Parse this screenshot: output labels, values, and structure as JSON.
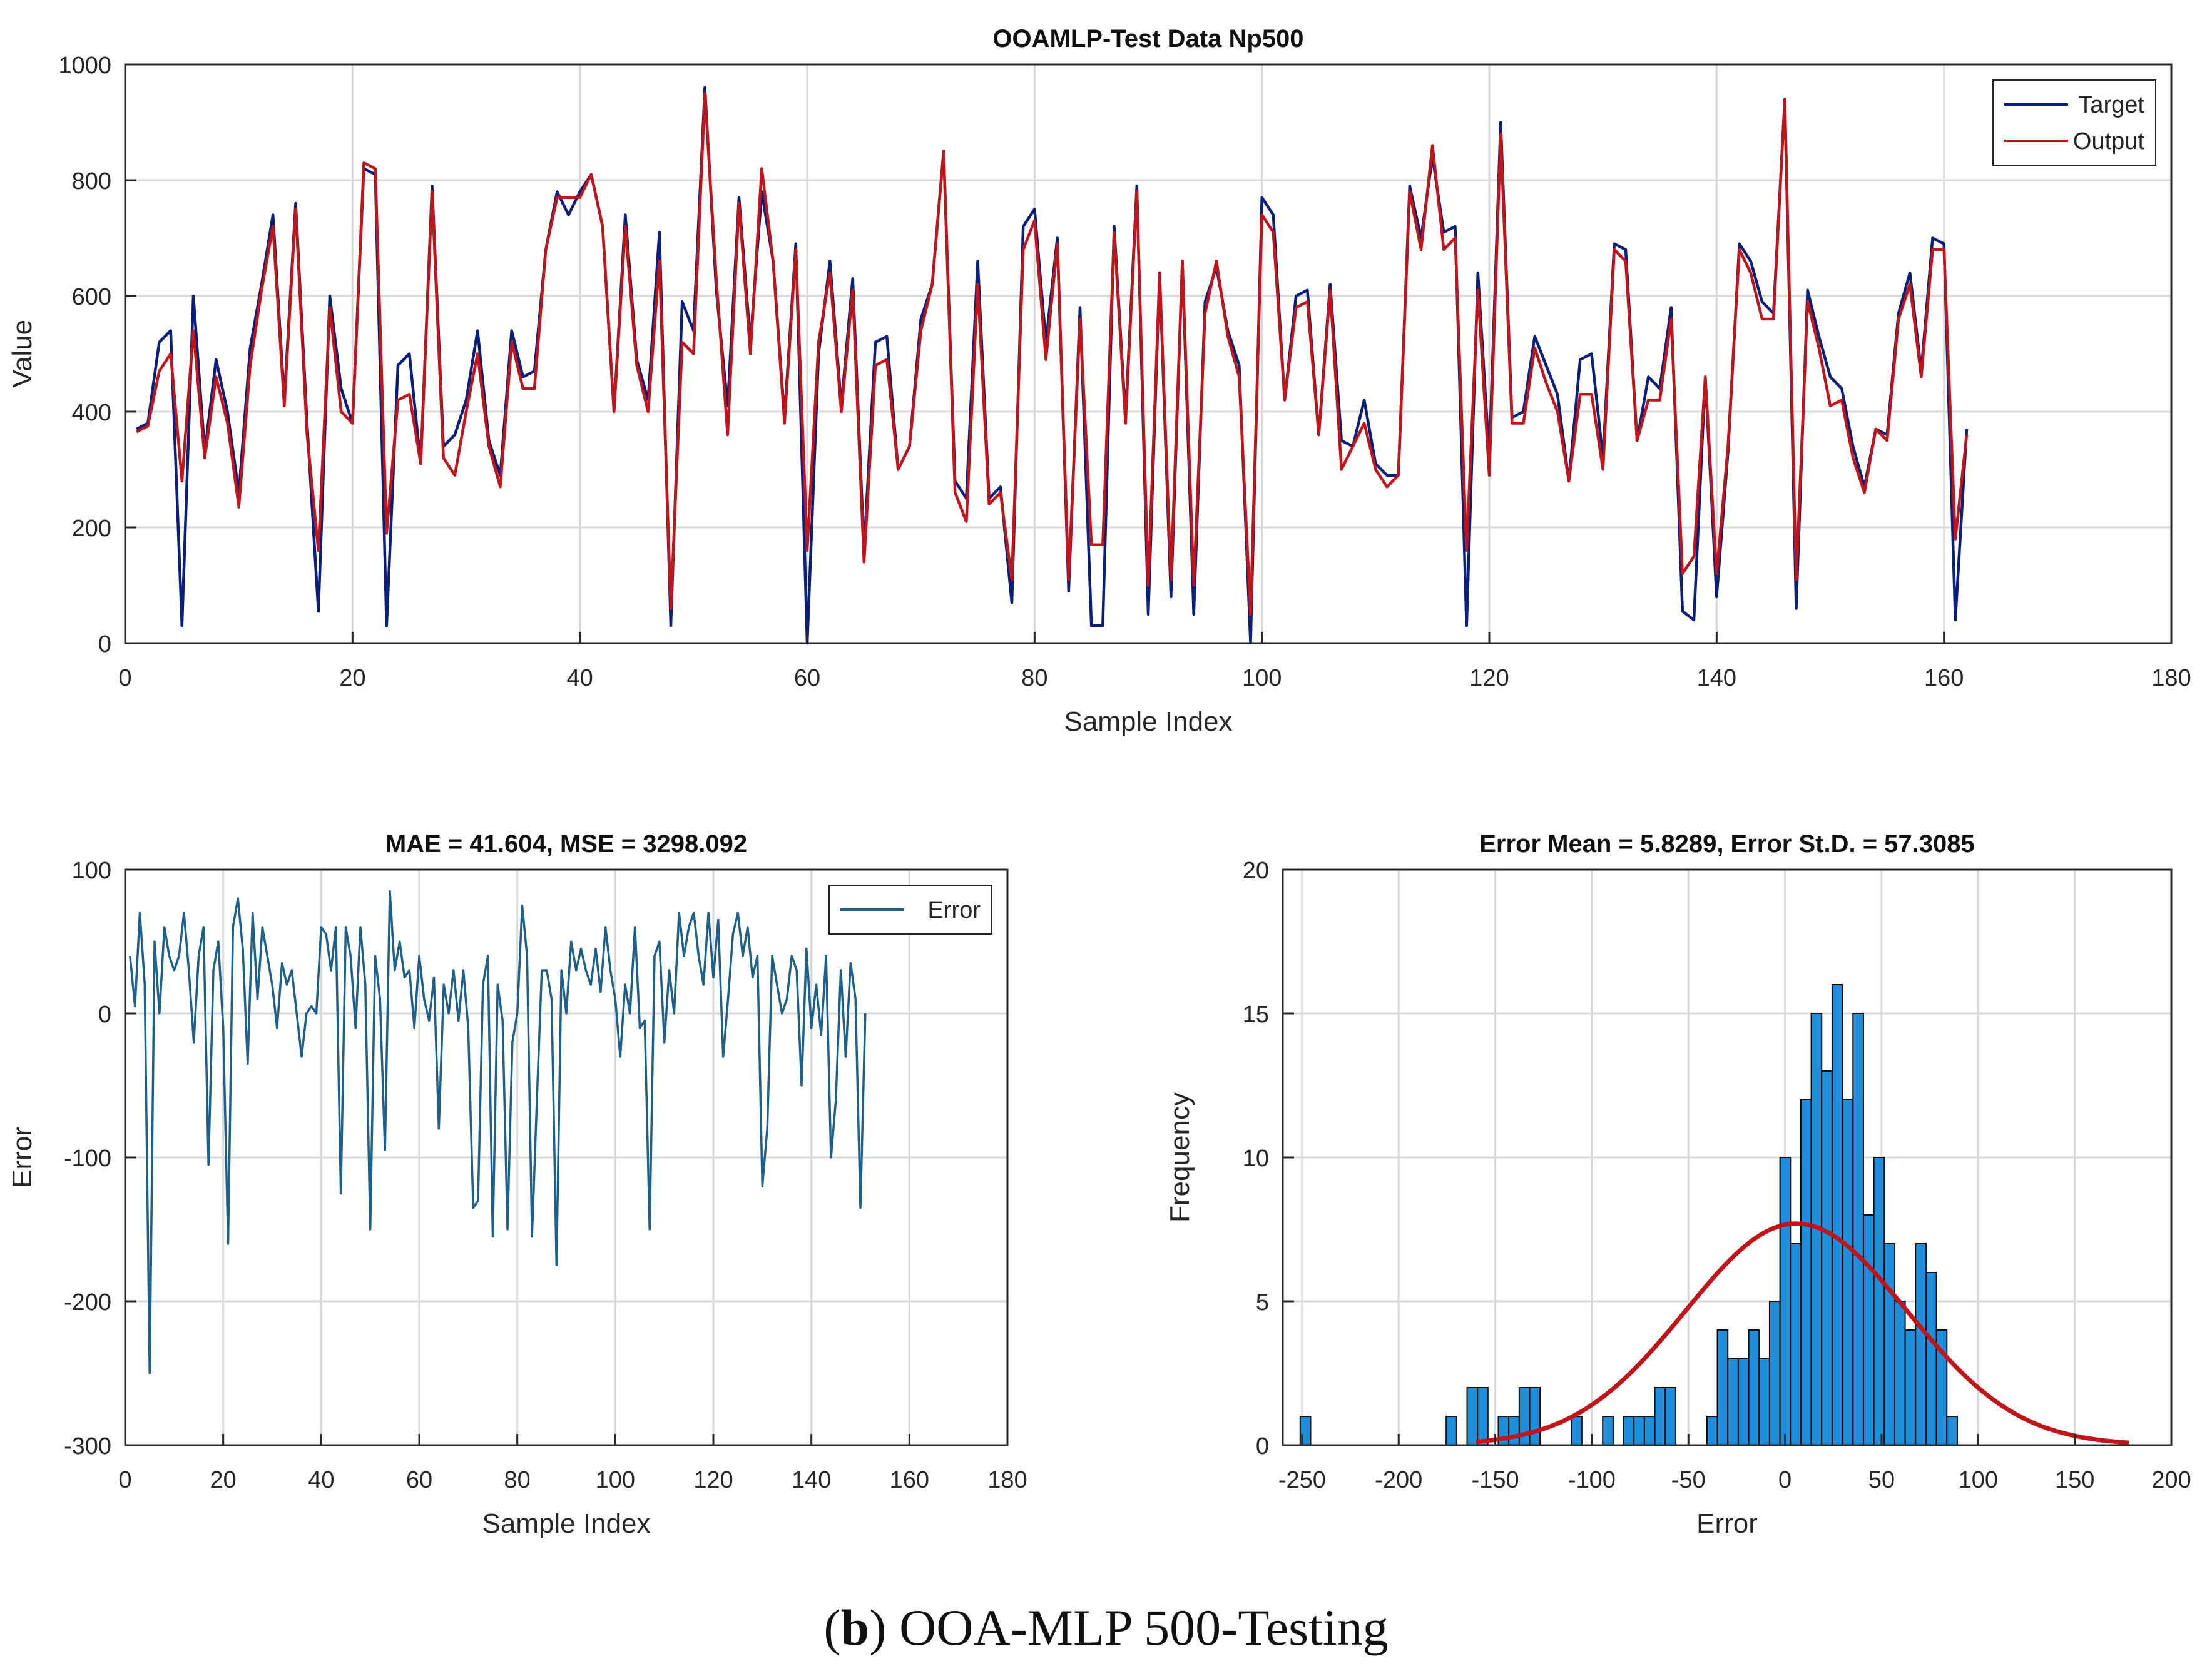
{
  "caption": {
    "label": "b",
    "text": " OOA-MLP 500-Testing"
  },
  "colors": {
    "target": "#0a1f7a",
    "output": "#c0151a",
    "error_line": "#1f5f8b",
    "hist_bar": "#1f8fdc",
    "fit_curve": "#c0151a",
    "grid": "#d9d9d9"
  },
  "chart_data": [
    {
      "type": "line",
      "title": "OOAMLP-Test Data Np500",
      "xlabel": "Sample Index",
      "ylabel": "Value",
      "xlim": [
        0,
        180
      ],
      "ylim": [
        0,
        1000
      ],
      "xticks": [
        0,
        20,
        40,
        60,
        80,
        100,
        120,
        140,
        160,
        180
      ],
      "yticks": [
        0,
        200,
        400,
        600,
        800,
        1000
      ],
      "grid": true,
      "legend": "top-right",
      "series": [
        {
          "name": "Target",
          "values": [
            370,
            380,
            520,
            540,
            30,
            600,
            330,
            490,
            400,
            260,
            510,
            620,
            740,
            420,
            760,
            380,
            55,
            600,
            440,
            380,
            820,
            810,
            30,
            480,
            500,
            310,
            790,
            340,
            360,
            420,
            540,
            350,
            290,
            540,
            460,
            470,
            680,
            780,
            740,
            780,
            810,
            720,
            400,
            740,
            490,
            420,
            710,
            30,
            590,
            540,
            960,
            610,
            410,
            770,
            520,
            780,
            660,
            390,
            690,
            0,
            500,
            660,
            410,
            630,
            160,
            520,
            530,
            300,
            340,
            560,
            620,
            850,
            280,
            250,
            660,
            250,
            270,
            70,
            720,
            750,
            520,
            700,
            90,
            580,
            30,
            30,
            720,
            390,
            790,
            50,
            640,
            80,
            660,
            50,
            590,
            650,
            540,
            480,
            0,
            770,
            740,
            420,
            600,
            610,
            360,
            620,
            350,
            340,
            420,
            310,
            290,
            290,
            790,
            700,
            840,
            710,
            720,
            30,
            640,
            320,
            900,
            390,
            400,
            530,
            480,
            430,
            280,
            490,
            500,
            320,
            690,
            680,
            350,
            460,
            440,
            580,
            55,
            40,
            460,
            80,
            330,
            690,
            660,
            590,
            570,
            940,
            60,
            610,
            530,
            460,
            440,
            340,
            270,
            370,
            360,
            570,
            640,
            470,
            700,
            690,
            40,
            370
          ]
        },
        {
          "name": "Output",
          "values": [
            365,
            375,
            470,
            500,
            280,
            540,
            320,
            460,
            380,
            235,
            480,
            610,
            720,
            410,
            750,
            360,
            160,
            580,
            400,
            380,
            830,
            820,
            190,
            420,
            430,
            310,
            780,
            320,
            290,
            400,
            500,
            340,
            270,
            520,
            440,
            440,
            680,
            770,
            770,
            770,
            810,
            720,
            400,
            720,
            480,
            400,
            660,
            60,
            520,
            500,
            950,
            630,
            360,
            760,
            500,
            820,
            660,
            380,
            680,
            160,
            520,
            640,
            400,
            610,
            140,
            480,
            490,
            300,
            340,
            540,
            620,
            850,
            260,
            210,
            620,
            240,
            260,
            110,
            680,
            730,
            490,
            690,
            110,
            560,
            170,
            170,
            710,
            380,
            780,
            100,
            640,
            110,
            660,
            100,
            570,
            660,
            530,
            460,
            50,
            740,
            710,
            420,
            580,
            590,
            360,
            610,
            300,
            340,
            380,
            300,
            270,
            290,
            780,
            680,
            860,
            680,
            700,
            160,
            610,
            290,
            880,
            380,
            380,
            510,
            450,
            400,
            280,
            430,
            430,
            300,
            680,
            660,
            350,
            420,
            420,
            560,
            120,
            150,
            460,
            120,
            340,
            680,
            640,
            560,
            560,
            940,
            110,
            590,
            510,
            410,
            420,
            320,
            260,
            370,
            350,
            560,
            620,
            460,
            680,
            680,
            180,
            360
          ]
        }
      ]
    },
    {
      "type": "line",
      "title": "MAE = 41.604, MSE = 3298.092",
      "xlabel": "Sample Index",
      "ylabel": "Error",
      "xlim": [
        0,
        180
      ],
      "ylim": [
        -300,
        100
      ],
      "xticks": [
        0,
        20,
        40,
        60,
        80,
        100,
        120,
        140,
        160,
        180
      ],
      "yticks": [
        -300,
        -200,
        -100,
        0,
        100
      ],
      "grid": true,
      "legend": "top-right",
      "series": [
        {
          "name": "Error",
          "values": [
            40,
            5,
            70,
            20,
            -250,
            50,
            0,
            60,
            40,
            30,
            40,
            70,
            30,
            -20,
            40,
            60,
            -105,
            30,
            50,
            -10,
            -160,
            60,
            80,
            45,
            -35,
            70,
            10,
            60,
            40,
            20,
            -10,
            35,
            20,
            30,
            0,
            -30,
            0,
            5,
            0,
            60,
            55,
            30,
            60,
            -125,
            60,
            40,
            -10,
            60,
            20,
            -150,
            40,
            10,
            -95,
            85,
            30,
            50,
            25,
            30,
            -10,
            40,
            10,
            -5,
            25,
            -80,
            20,
            0,
            30,
            -5,
            30,
            -10,
            -135,
            -130,
            20,
            40,
            -155,
            20,
            -5,
            -150,
            -20,
            0,
            75,
            40,
            -155,
            -60,
            30,
            30,
            10,
            -175,
            30,
            0,
            50,
            30,
            45,
            30,
            20,
            45,
            15,
            60,
            30,
            10,
            -30,
            20,
            0,
            60,
            -10,
            -5,
            -150,
            40,
            50,
            -20,
            30,
            0,
            70,
            40,
            60,
            70,
            40,
            20,
            70,
            25,
            65,
            -30,
            10,
            55,
            70,
            40,
            60,
            25,
            40,
            -120,
            -80,
            40,
            20,
            0,
            10,
            40,
            30,
            -50,
            45,
            -10,
            20,
            -15,
            40,
            -100,
            -60,
            30,
            -30,
            35,
            10,
            -135,
            0
          ]
        }
      ]
    },
    {
      "type": "bar",
      "title": "Error Mean = 5.8289, Error St.D. = 57.3085",
      "xlabel": "Error",
      "ylabel": "Frequency",
      "xlim": [
        -260,
        200
      ],
      "ylim": [
        0,
        20
      ],
      "xticks": [
        -250,
        -200,
        -150,
        -100,
        -50,
        0,
        50,
        100,
        150,
        200
      ],
      "yticks": [
        0,
        5,
        10,
        15,
        20
      ],
      "grid": true,
      "bin_width": 5.4,
      "bin_left_edges": [
        -251,
        -175.4,
        -164.6,
        -159.2,
        -148.4,
        -143,
        -137.6,
        -132.2,
        -110.6,
        -94.4,
        -83.6,
        -78.2,
        -72.8,
        -67.4,
        -62,
        -40.4,
        -35,
        -29.6,
        -24.2,
        -18.8,
        -13.4,
        -8,
        -2.6,
        2.8,
        8.2,
        13.6,
        19,
        24.4,
        29.8,
        35.2,
        40.6,
        46,
        51.4,
        56.8,
        62.2,
        67.6,
        73,
        78.4,
        83.8
      ],
      "values": [
        1,
        1,
        2,
        2,
        1,
        1,
        2,
        2,
        1,
        1,
        1,
        1,
        1,
        2,
        2,
        1,
        4,
        3,
        3,
        4,
        3,
        5,
        10,
        7,
        12,
        15,
        13,
        16,
        12,
        15,
        8,
        10,
        7,
        5,
        4,
        7,
        6,
        4,
        1
      ],
      "fit_curve": {
        "type": "normal",
        "mean": 5.8289,
        "std": 57.3085,
        "peak": 7.7
      }
    }
  ]
}
